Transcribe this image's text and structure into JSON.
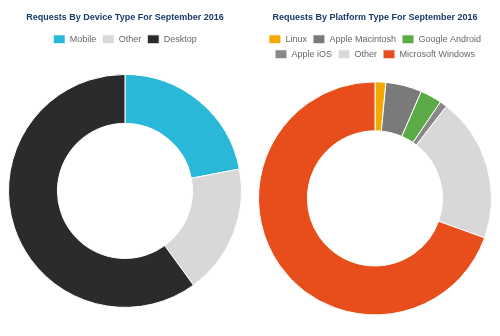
{
  "chart_data": [
    {
      "type": "donut",
      "title": "Requests By Device Type For September 2016",
      "categories": [
        "Mobile",
        "Other",
        "Desktop"
      ],
      "values": [
        22,
        18,
        60
      ],
      "colors": [
        "#29b8d8",
        "#d8d8d8",
        "#2b2b2b"
      ],
      "legend": "top"
    },
    {
      "type": "donut",
      "title": "Requests By Platform Type For September 2016",
      "categories": [
        "Linux",
        "Apple Macintosh",
        "Google Android",
        "Apple iOS",
        "Other",
        "Microsoft Windows"
      ],
      "values": [
        1.5,
        5,
        3,
        1,
        20,
        69.5
      ],
      "colors": [
        "#f5a800",
        "#7a7a7a",
        "#5aab45",
        "#888888",
        "#d8d8d8",
        "#e84e1b"
      ],
      "legend": "top"
    }
  ]
}
